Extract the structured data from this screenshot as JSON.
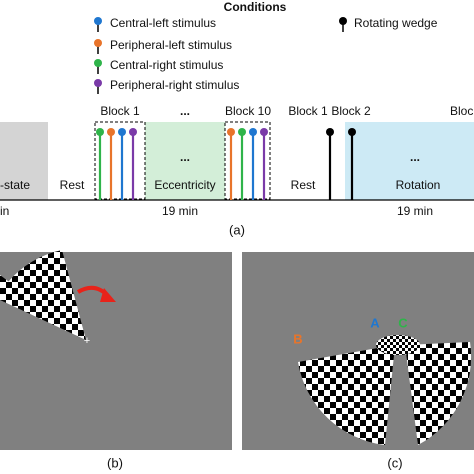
{
  "legend": {
    "title": "Conditions",
    "items": [
      "Central-left stimulus",
      "Peripheral-left stimulus",
      "Central-right stimulus",
      "Peripheral-right stimulus"
    ],
    "wedge": "Rotating wedge"
  },
  "timeline": {
    "resting_state": "-state",
    "resting_duration": "in",
    "rest_1": "Rest",
    "block_first": "Block 1",
    "block_ellipsis": "...",
    "block_last": "Block 10",
    "eccentricity_ellipsis": "...",
    "eccentricity": "Eccentricity",
    "eccentricity_duration": "19 min",
    "rest_2": "Rest",
    "rotation_block_1": "Block 1",
    "rotation_block_2": "Block 2",
    "rotation_block_cut": "Bloc",
    "rotation_ellipsis": "...",
    "rotation": "Rotation",
    "rotation_duration": "19 min",
    "caption": "(a)"
  },
  "panel_b": {
    "caption": "(b)"
  },
  "panel_c": {
    "label_b": "B",
    "label_a": "A",
    "label_c": "C",
    "caption": "(c)"
  }
}
